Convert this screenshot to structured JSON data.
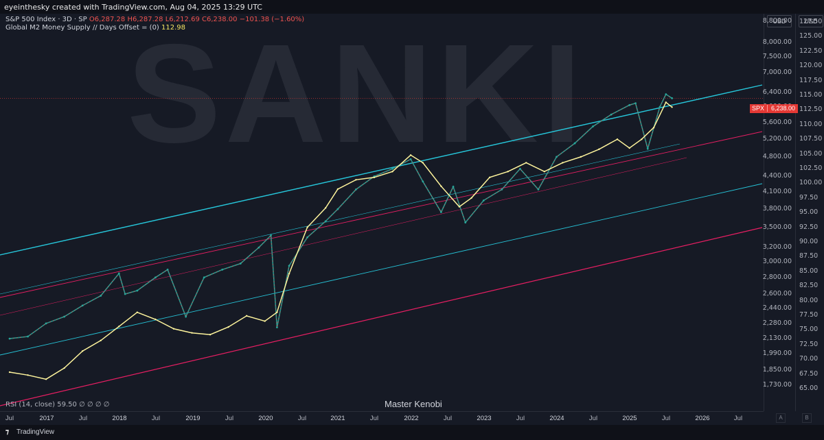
{
  "header": {
    "credit": "eyeinthesky created with TradingView.com, Aug 04, 2025 13:29 UTC"
  },
  "legend": {
    "spx_symbol": "S&P 500 Index · 3D · SP",
    "open": "O6,287.28",
    "high": "H6,287.28",
    "low": "L6,212.69",
    "close": "C6,238.00",
    "change": "−101.38 (−1.60%)",
    "m2_label": "Global M2 Money Supply // Days Offset = (0)",
    "m2_value": "112.98",
    "rsi": "RSI (14, close)",
    "rsi_value": "59.50",
    "rsi_extra": "∅ ∅ ∅ ∅"
  },
  "watermark": "SANKI",
  "author": "Master Kenobi",
  "currency_left": "USD",
  "currency_right": "USD",
  "price_tag": {
    "symbol": "SPX",
    "value": "6,238.00",
    "color": "#e53935"
  },
  "footer_logo": "TradingView",
  "corner_a": "A",
  "corner_b": "B",
  "axis_left_ticks": [
    "8,800.00",
    "8,000.00",
    "7,500.00",
    "7,000.00",
    "6,400.00",
    "6,000.00",
    "5,600.00",
    "5,200.00",
    "4,800.00",
    "4,400.00",
    "4,100.00",
    "3,800.00",
    "3,500.00",
    "3,200.00",
    "3,000.00",
    "2,800.00",
    "2,600.00",
    "2,440.00",
    "2,280.00",
    "2,130.00",
    "1,990.00",
    "1,850.00",
    "1,730.00"
  ],
  "axis_right_ticks": [
    "127.50",
    "125.00",
    "122.50",
    "120.00",
    "117.50",
    "115.00",
    "112.50",
    "110.00",
    "107.50",
    "105.00",
    "102.50",
    "100.00",
    "97.50",
    "95.00",
    "92.50",
    "90.00",
    "87.50",
    "85.00",
    "82.50",
    "80.00",
    "77.50",
    "75.00",
    "72.50",
    "70.00",
    "67.50",
    "65.00"
  ],
  "x_ticks": [
    "Jul",
    "2017",
    "Jul",
    "2018",
    "Jul",
    "2019",
    "Jul",
    "2020",
    "Jul",
    "2021",
    "Jul",
    "2022",
    "Jul",
    "2023",
    "Jul",
    "2024",
    "Jul",
    "2025",
    "Jul",
    "2026",
    "Jul"
  ],
  "colors": {
    "channel_cyan": "#26c6da",
    "channel_red": "#e91e63",
    "m2_line": "#fff59d",
    "candle_up": "#26a69a",
    "candle_down": "#ef5350"
  },
  "chart_data": {
    "type": "line",
    "scale": "log",
    "series": [
      {
        "name": "S&P 500 Index · 3D · SP",
        "axis": "left",
        "x": [
          "2016-07",
          "2016-10",
          "2017-01",
          "2017-04",
          "2017-07",
          "2017-10",
          "2018-01",
          "2018-02",
          "2018-04",
          "2018-07",
          "2018-09",
          "2018-12",
          "2019-03",
          "2019-06",
          "2019-09",
          "2019-12",
          "2020-02",
          "2020-03",
          "2020-05",
          "2020-08",
          "2020-11",
          "2021-01",
          "2021-04",
          "2021-07",
          "2021-10",
          "2022-01",
          "2022-03",
          "2022-06",
          "2022-08",
          "2022-10",
          "2023-01",
          "2023-04",
          "2023-07",
          "2023-10",
          "2024-01",
          "2024-04",
          "2024-07",
          "2024-10",
          "2025-01",
          "2025-02",
          "2025-04",
          "2025-06",
          "2025-07",
          "2025-08"
        ],
        "values": [
          2130,
          2150,
          2280,
          2350,
          2470,
          2580,
          2850,
          2600,
          2640,
          2800,
          2900,
          2350,
          2800,
          2900,
          2980,
          3200,
          3380,
          2240,
          2950,
          3350,
          3600,
          3800,
          4150,
          4400,
          4550,
          4750,
          4300,
          3750,
          4200,
          3580,
          3950,
          4150,
          4550,
          4150,
          4800,
          5100,
          5500,
          5800,
          6050,
          6100,
          4980,
          6000,
          6350,
          6238
        ]
      },
      {
        "name": "Global M2 Money Supply // Days Offset = (0)",
        "axis": "right",
        "x": [
          "2016-07",
          "2016-10",
          "2017-01",
          "2017-04",
          "2017-07",
          "2017-10",
          "2018-01",
          "2018-04",
          "2018-07",
          "2018-10",
          "2019-01",
          "2019-04",
          "2019-07",
          "2019-10",
          "2020-01",
          "2020-03",
          "2020-05",
          "2020-08",
          "2020-11",
          "2021-01",
          "2021-04",
          "2021-07",
          "2021-10",
          "2022-01",
          "2022-03",
          "2022-06",
          "2022-09",
          "2022-11",
          "2023-02",
          "2023-05",
          "2023-08",
          "2023-11",
          "2024-02",
          "2024-05",
          "2024-08",
          "2024-11",
          "2025-01",
          "2025-03",
          "2025-05",
          "2025-07",
          "2025-08"
        ],
        "values": [
          67.8,
          67.3,
          66.6,
          68.5,
          71.4,
          73.2,
          75.6,
          78.0,
          76.8,
          75.2,
          74.5,
          74.2,
          75.5,
          77.4,
          76.5,
          78.0,
          84.6,
          92.5,
          95.8,
          99.0,
          100.6,
          101.0,
          102.0,
          104.8,
          103.5,
          99.5,
          96.0,
          97.5,
          101.0,
          102.0,
          103.5,
          102.0,
          103.5,
          104.5,
          105.8,
          107.5,
          106.0,
          107.5,
          109.5,
          113.8,
          112.98
        ]
      }
    ],
    "ylim_left": [
      1730,
      8800
    ],
    "ylim_right": [
      65,
      127.5
    ],
    "grid": false
  }
}
